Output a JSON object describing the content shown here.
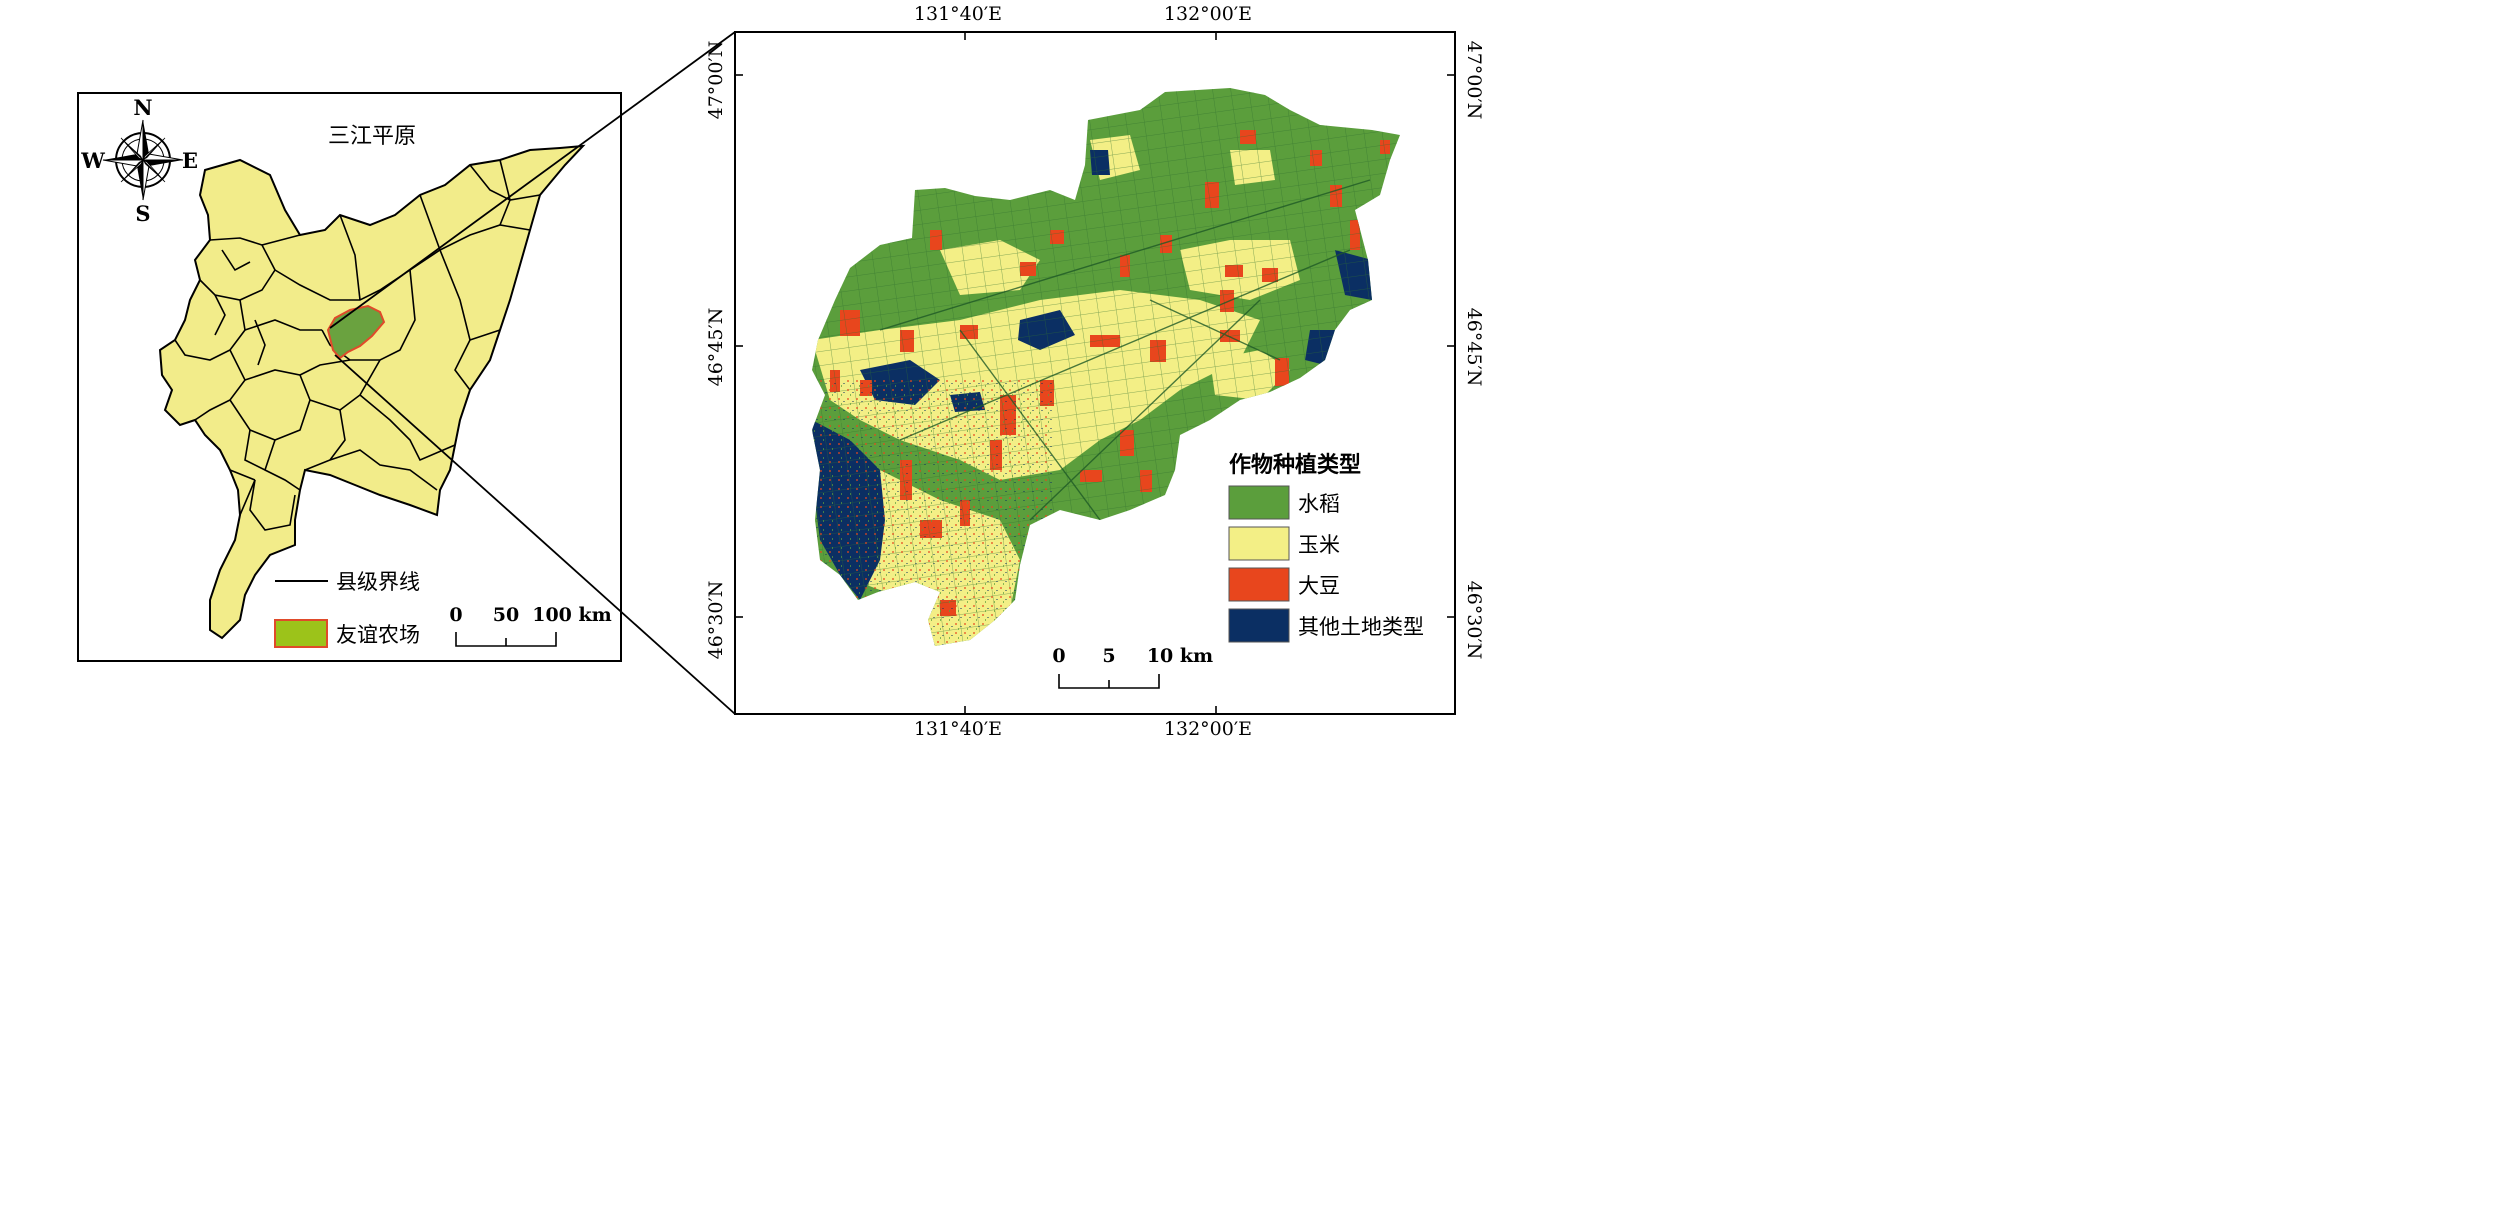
{
  "inset": {
    "region_title": "三江平原",
    "compass": {
      "n": "N",
      "s": "S",
      "e": "E",
      "w": "W"
    },
    "legend": {
      "boundary_label": "县级界线",
      "farm_label": "友谊农场"
    },
    "scale": {
      "ticks": [
        "0",
        "50",
        "100 km"
      ]
    }
  },
  "main_map": {
    "lon_ticks": [
      "131°40′E",
      "132°00′E"
    ],
    "lat_ticks": [
      "47°00′N",
      "46°45′N",
      "46°30′N"
    ],
    "legend": {
      "title": "作物种植类型",
      "items": [
        {
          "label": "水稻",
          "color": "#5b9e3c"
        },
        {
          "label": "玉米",
          "color": "#f3ef86"
        },
        {
          "label": "大豆",
          "color": "#e8461d"
        },
        {
          "label": "其他土地类型",
          "color": "#0b2f63"
        }
      ]
    },
    "scale": {
      "ticks": [
        "0",
        "5",
        "10 km"
      ]
    }
  },
  "colors": {
    "region_fill": "#f2ec8a",
    "farm_fill": "#6aa23f",
    "farm_outline": "#e04a2a",
    "farm_legend_fill": "#9cc31a"
  }
}
